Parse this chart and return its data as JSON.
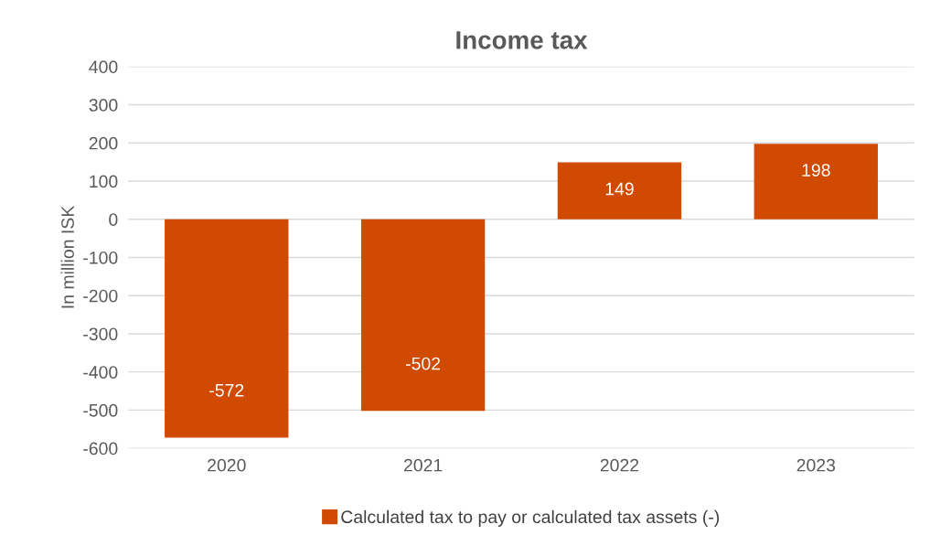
{
  "chart_data": {
    "type": "bar",
    "title": "Income tax",
    "ylabel": "In million ISK",
    "categories": [
      "2020",
      "2021",
      "2022",
      "2023"
    ],
    "series": [
      {
        "name": "Calculated tax to pay or calculated tax assets (-)",
        "color": "#d04a02",
        "values": [
          -572,
          -502,
          149,
          198
        ]
      }
    ],
    "ylim": [
      -600,
      400
    ],
    "yticks": [
      -600,
      -500,
      -400,
      -300,
      -200,
      -100,
      0,
      100,
      200,
      300,
      400
    ],
    "grid": "y",
    "legend": "bottom",
    "data_labels": true
  }
}
